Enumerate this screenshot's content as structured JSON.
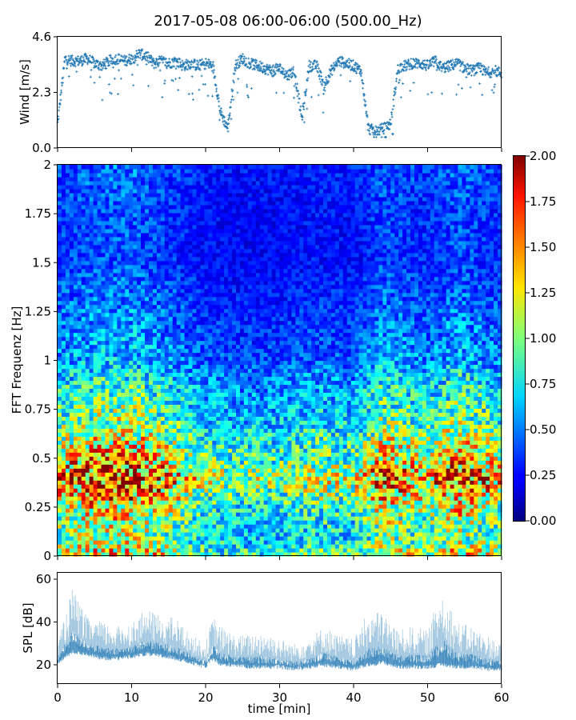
{
  "chart_data": [
    {
      "type": "scatter",
      "title": "2017-05-08 06:00-06:00 (500.00_Hz)",
      "xlabel": "",
      "ylabel": "Wind [m/s]",
      "xlim": [
        0,
        60
      ],
      "ylim": [
        0.0,
        4.6
      ],
      "xticks": [
        0,
        10,
        20,
        30,
        40,
        50,
        60
      ],
      "yticks": [
        "0.0",
        "2.3",
        "4.6"
      ],
      "marker": "+",
      "color": "#1f77b4",
      "x": [
        0,
        1,
        2,
        3,
        4,
        5,
        6,
        7,
        8,
        9,
        10,
        11,
        12,
        13,
        14,
        15,
        16,
        17,
        18,
        19,
        20,
        21,
        22,
        23,
        24,
        25,
        26,
        27,
        28,
        29,
        30,
        31,
        32,
        33,
        34,
        35,
        36,
        37,
        38,
        39,
        40,
        41,
        42,
        43,
        44,
        45,
        46,
        47,
        48,
        49,
        50,
        51,
        52,
        53,
        54,
        55,
        56,
        57,
        58,
        59,
        60
      ],
      "y": [
        1.0,
        3.7,
        3.6,
        3.6,
        3.7,
        3.5,
        3.4,
        3.6,
        3.7,
        3.6,
        3.7,
        3.9,
        3.8,
        3.5,
        3.6,
        3.5,
        3.6,
        3.4,
        3.5,
        3.4,
        3.5,
        3.4,
        1.5,
        0.8,
        3.4,
        3.7,
        3.5,
        3.4,
        3.3,
        3.2,
        3.3,
        3.0,
        3.2,
        1.2,
        3.4,
        3.4,
        2.6,
        3.2,
        3.6,
        3.5,
        3.4,
        3.2,
        0.8,
        0.7,
        0.8,
        1.0,
        3.3,
        3.4,
        3.5,
        3.5,
        3.4,
        3.6,
        3.3,
        3.4,
        3.5,
        3.3,
        3.2,
        3.3,
        3.1,
        3.2,
        3.1
      ]
    },
    {
      "type": "heatmap",
      "title": "",
      "xlabel": "",
      "ylabel": "FFT Frequenz [Hz]",
      "xlim": [
        0,
        60
      ],
      "ylim": [
        0,
        2
      ],
      "yticks": [
        "0",
        "0.25",
        "0.5",
        "0.75",
        "1",
        "1.25",
        "1.5",
        "1.75",
        "2"
      ],
      "colormap": "jet",
      "colorbar": {
        "vmin": 0.0,
        "vmax": 2.0,
        "ticks": [
          "0.00",
          "0.25",
          "0.50",
          "0.75",
          "1.00",
          "1.25",
          "1.50",
          "1.75",
          "2.00"
        ]
      },
      "value_profile_by_frequency_hz": [
        {
          "freq": 0.0,
          "level": 1.2
        },
        {
          "freq": 0.1,
          "level": 0.9
        },
        {
          "freq": 0.25,
          "level": 1.1
        },
        {
          "freq": 0.4,
          "level": 1.5
        },
        {
          "freq": 0.5,
          "level": 1.2
        },
        {
          "freq": 0.7,
          "level": 0.9
        },
        {
          "freq": 0.9,
          "level": 0.7
        },
        {
          "freq": 1.0,
          "level": 0.55
        },
        {
          "freq": 1.25,
          "level": 0.45
        },
        {
          "freq": 1.5,
          "level": 0.35
        },
        {
          "freq": 1.75,
          "level": 0.35
        },
        {
          "freq": 2.0,
          "level": 0.4
        }
      ],
      "time_activity_min": [
        {
          "t": 0,
          "level": 1.0
        },
        {
          "t": 5,
          "level": 1.15
        },
        {
          "t": 10,
          "level": 1.2
        },
        {
          "t": 15,
          "level": 1.0
        },
        {
          "t": 20,
          "level": 0.75
        },
        {
          "t": 25,
          "level": 0.7
        },
        {
          "t": 30,
          "level": 0.7
        },
        {
          "t": 35,
          "level": 0.8
        },
        {
          "t": 40,
          "level": 0.75
        },
        {
          "t": 44,
          "level": 1.1
        },
        {
          "t": 50,
          "level": 0.9
        },
        {
          "t": 54,
          "level": 1.15
        },
        {
          "t": 60,
          "level": 0.9
        }
      ]
    },
    {
      "type": "area",
      "title": "",
      "xlabel": "time [min]",
      "ylabel": "SPL [dB]",
      "xlim": [
        0,
        60
      ],
      "ylim": [
        11,
        63
      ],
      "xticks": [
        "0",
        "10",
        "20",
        "30",
        "40",
        "50",
        "60"
      ],
      "yticks": [
        "20",
        "40",
        "60"
      ],
      "color": "#1f77b4",
      "x": [
        0,
        2,
        4,
        6,
        8,
        10,
        12,
        14,
        16,
        18,
        20,
        21,
        22,
        24,
        26,
        28,
        30,
        32,
        34,
        36,
        38,
        40,
        42,
        44,
        46,
        48,
        50,
        52,
        54,
        56,
        58,
        60
      ],
      "upper": [
        30,
        56,
        42,
        40,
        38,
        40,
        46,
        43,
        42,
        34,
        30,
        43,
        38,
        34,
        34,
        36,
        32,
        30,
        33,
        38,
        34,
        32,
        45,
        45,
        36,
        38,
        36,
        57,
        40,
        38,
        34,
        30
      ],
      "lower": [
        20,
        25,
        24,
        22,
        22,
        23,
        24,
        23,
        22,
        20,
        18,
        22,
        19,
        19,
        18,
        18,
        18,
        17,
        18,
        19,
        18,
        17,
        19,
        20,
        18,
        18,
        18,
        19,
        18,
        18,
        17,
        17
      ]
    }
  ]
}
